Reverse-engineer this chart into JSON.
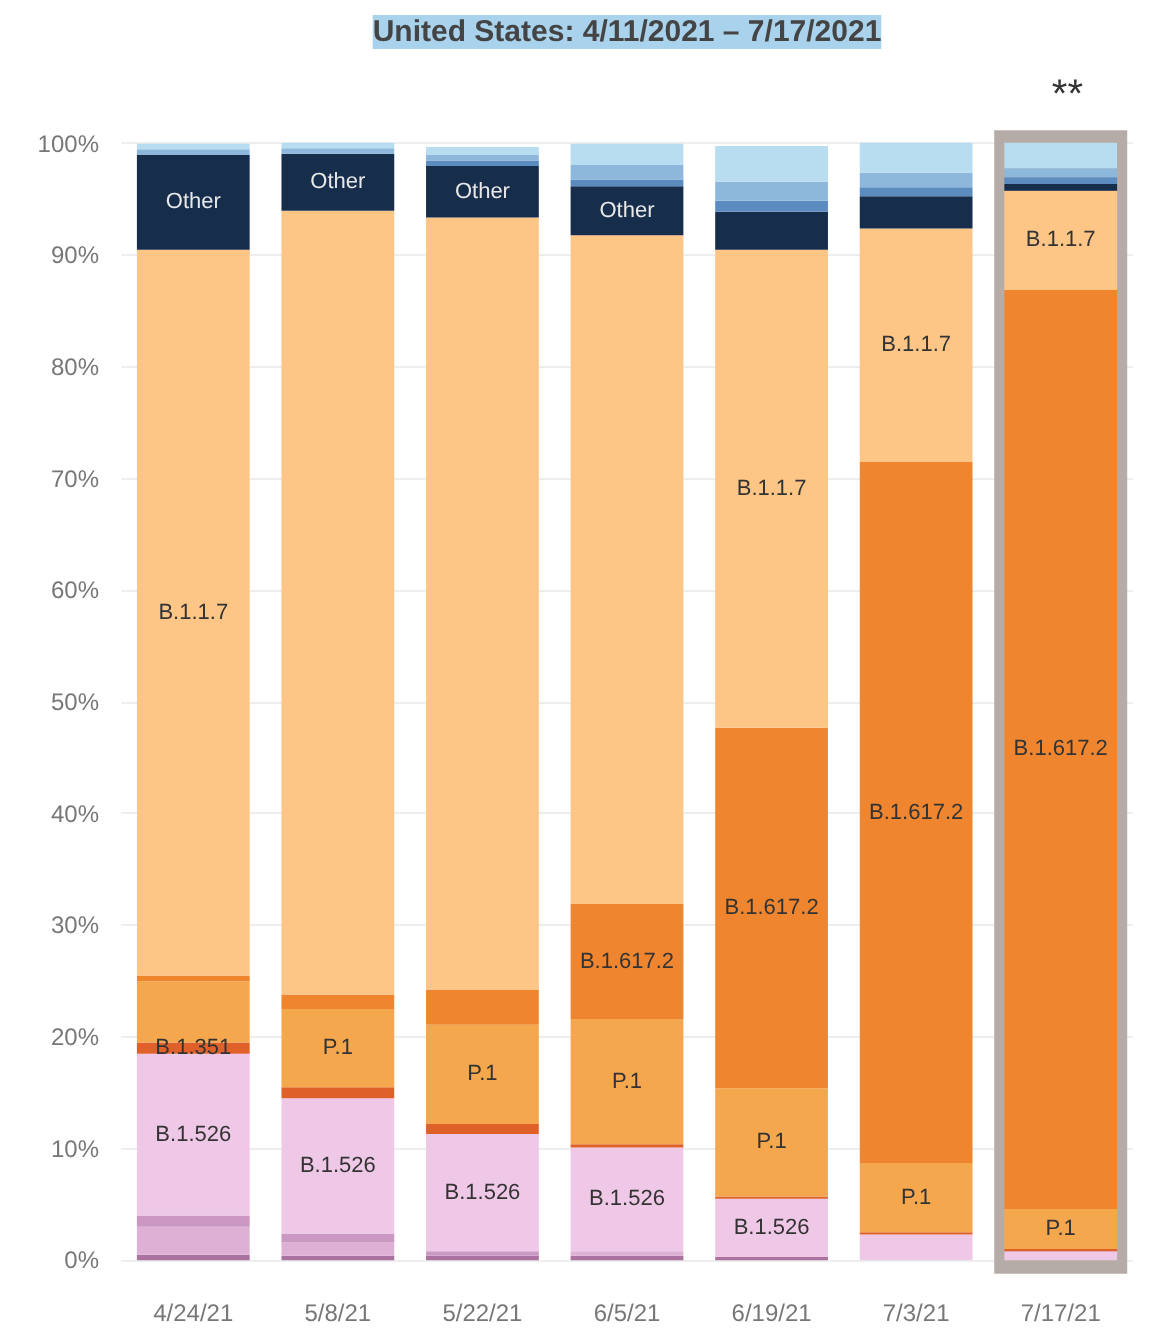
{
  "chart_data": {
    "type": "bar",
    "title": "United States: 4/11/2021 – 7/17/2021",
    "stacked": true,
    "categories": [
      "4/24/21",
      "5/8/21",
      "5/22/21",
      "6/5/21",
      "6/19/21",
      "7/3/21",
      "7/17/21"
    ],
    "series": [
      {
        "color": "#a9729f",
        "values": [
          0.5,
          0.4,
          0.4,
          0.4,
          0.3,
          0,
          0
        ]
      },
      {
        "color": "#dfb0d6",
        "values": [
          2.5,
          1.2,
          null,
          0.4,
          null,
          0,
          0
        ]
      },
      {
        "color": "#cb97c3",
        "values": [
          1,
          0.8,
          0.4,
          0,
          0,
          0,
          0
        ]
      },
      {
        "color": "#eec8e6",
        "values": [
          14.5,
          12.1,
          10.5,
          9.3,
          5.2,
          2.3,
          0.8
        ],
        "value_labels": [
          "B.1.526",
          "B.1.526",
          "B.1.526",
          "B.1.526",
          "B.1.526",
          null,
          null
        ]
      },
      {
        "color": "#e0602a",
        "values": [
          1,
          1,
          0.9,
          0.3,
          0.2,
          0.2,
          0.2
        ],
        "value_labels": [
          "B.1.351",
          null,
          null,
          null,
          null,
          null,
          null
        ]
      },
      {
        "color": "#f4a74c",
        "values": [
          5.5,
          7,
          8.9,
          11.2,
          9.7,
          6.2,
          3.6
        ],
        "value_labels": [
          null,
          "P.1",
          "P.1",
          "P.1",
          "P.1",
          "P.1",
          "P.1"
        ]
      },
      {
        "color": "#ef862f",
        "values": [
          0.5,
          1.3,
          3.1,
          10.3,
          32.3,
          62.8,
          82.3
        ],
        "value_labels": [
          null,
          null,
          null,
          "B.1.617.2",
          "B.1.617.2",
          "B.1.617.2",
          "B.1.617.2"
        ]
      },
      {
        "color": "#fdc586",
        "values": [
          65,
          70.2,
          69.2,
          59.9,
          42.8,
          20.9,
          8.9
        ],
        "value_labels": [
          "B.1.1.7",
          null,
          null,
          null,
          "B.1.1.7",
          "B.1.1.7",
          "B.1.1.7"
        ]
      },
      {
        "color": "#162d4b",
        "values": [
          8.5,
          5.1,
          4.6,
          4.4,
          3.4,
          2.9,
          0.6
        ],
        "value_labels": [
          "Other",
          "Other",
          "Other",
          "Other",
          null,
          null,
          null
        ]
      },
      {
        "color": "#5b8bbf",
        "values": [
          0,
          0,
          0.5,
          0.6,
          1,
          0.8,
          0.6
        ]
      },
      {
        "color": "#8db8dc",
        "values": [
          0.5,
          0.5,
          0.5,
          1.3,
          1.7,
          1.3,
          0.8
        ]
      },
      {
        "color": "#b8dcf0",
        "values": [
          0.5,
          0.5,
          0.7,
          1.9,
          3.2,
          2.7,
          2.3
        ]
      }
    ],
    "ylim": [
      0,
      100
    ],
    "yticks": [
      {
        "value": 0,
        "label": "0%"
      },
      {
        "value": 10,
        "label": "10%"
      },
      {
        "value": 20,
        "label": "20%"
      },
      {
        "value": 30,
        "label": "30%"
      },
      {
        "value": 40,
        "label": "40%"
      },
      {
        "value": 50,
        "label": "50%"
      },
      {
        "value": 60,
        "label": "60%"
      },
      {
        "value": 70,
        "label": "70%"
      },
      {
        "value": 80,
        "label": "80%"
      },
      {
        "value": 90,
        "label": "90%"
      },
      {
        "value": 100,
        "label": "100%"
      }
    ],
    "grid": "y",
    "bands": [
      {
        "axis": "x",
        "from": "7/17/21",
        "to": "7/17/21",
        "color": "#b6aca7"
      }
    ],
    "annotations": [
      "**"
    ]
  }
}
